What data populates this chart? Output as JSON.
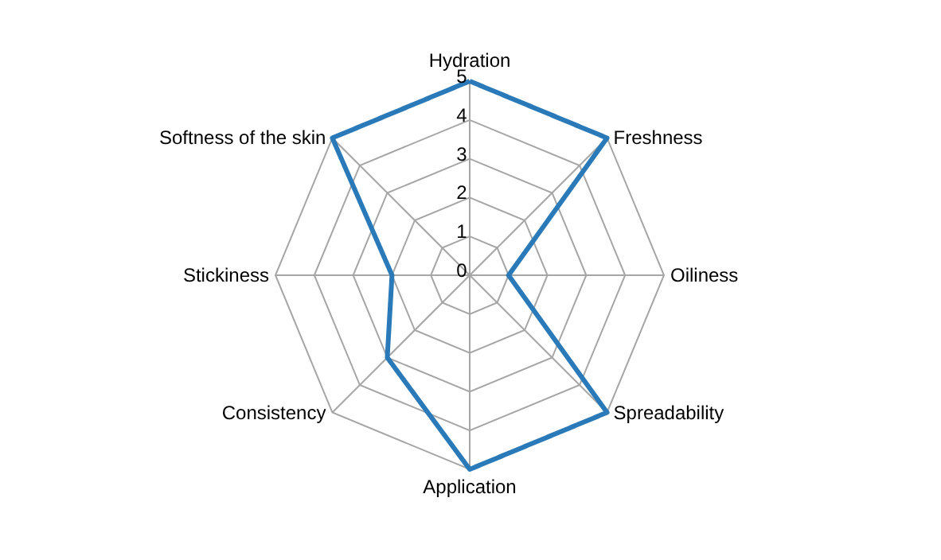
{
  "chart_data": {
    "type": "radar",
    "categories": [
      "Hydration",
      "Freshness",
      "Oiliness",
      "Spreadability",
      "Application",
      "Consistency",
      "Stickiness",
      "Softness of the skin"
    ],
    "series": [
      {
        "color": "#2a7ab9",
        "values": [
          5,
          5,
          1,
          5,
          5,
          3,
          2,
          5
        ]
      }
    ],
    "ylim": [
      0,
      5
    ],
    "yticks": [
      0,
      1,
      2,
      3,
      4,
      5
    ],
    "grid": true,
    "marker": "none",
    "line_style": "solid"
  }
}
